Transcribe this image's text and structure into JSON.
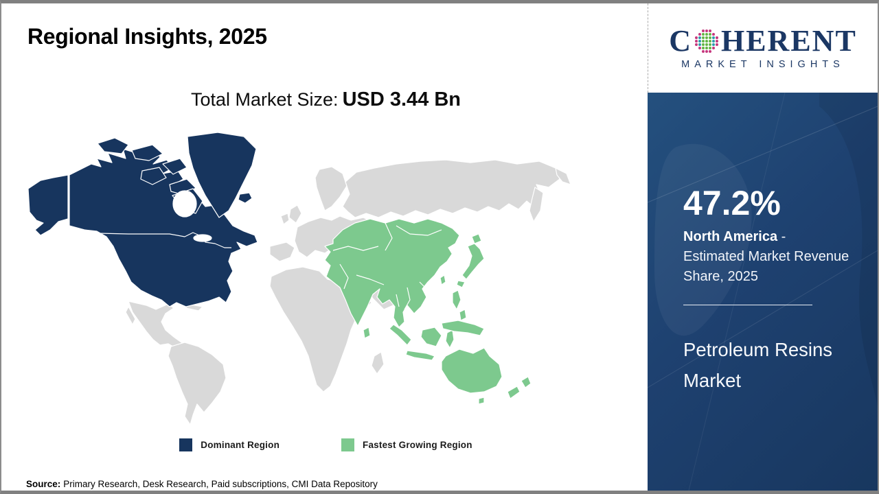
{
  "header": {
    "title": "Regional Insights, 2025"
  },
  "market_size": {
    "label": "Total Market Size:",
    "value": "USD 3.44 Bn"
  },
  "logo": {
    "brand_first_letter": "C",
    "brand_rest": "HERENT",
    "brand_sub": "MARKET INSIGHTS",
    "dot_colors": {
      "outer": "#c5377d",
      "mid": "#2b9bab",
      "center": "#63b545"
    },
    "text_color": "#1b3764"
  },
  "map": {
    "dominant_color": "#17355e",
    "growing_color": "#7dc98e",
    "land_color": "#d9d9d9",
    "dominant_region": "North America",
    "fastest_growing_region": "Asia Pacific"
  },
  "legend": [
    {
      "label": "Dominant Region",
      "color": "#17355e"
    },
    {
      "label": "Fastest Growing Region",
      "color": "#7dc98e"
    }
  ],
  "sidebar": {
    "share_value": "47.2%",
    "share_region": "North America",
    "share_desc": " - Estimated Market Revenue Share, 2025",
    "product": "Petroleum Resins Market"
  },
  "source": {
    "label": "Source:",
    "text": "Primary Research, Desk Research, Paid subscriptions, CMI Data Repository"
  },
  "chart_data": {
    "type": "choropleth_map",
    "title": "Regional Insights, 2025",
    "total_market_size": "USD 3.44 Bn",
    "legend": [
      "Dominant Region",
      "Fastest Growing Region"
    ],
    "legend_position": "bottom-center",
    "regions": [
      {
        "name": "North America",
        "status": "Dominant Region",
        "estimated_market_revenue_share_2025_pct": 47.2,
        "color": "#17355e"
      },
      {
        "name": "Asia Pacific",
        "status": "Fastest Growing Region",
        "color": "#7dc98e"
      },
      {
        "name": "Rest of World",
        "status": "Not highlighted",
        "color": "#d9d9d9"
      }
    ],
    "annotation": "47.2% North America - Estimated Market Revenue Share, 2025",
    "subject": "Petroleum Resins Market"
  }
}
